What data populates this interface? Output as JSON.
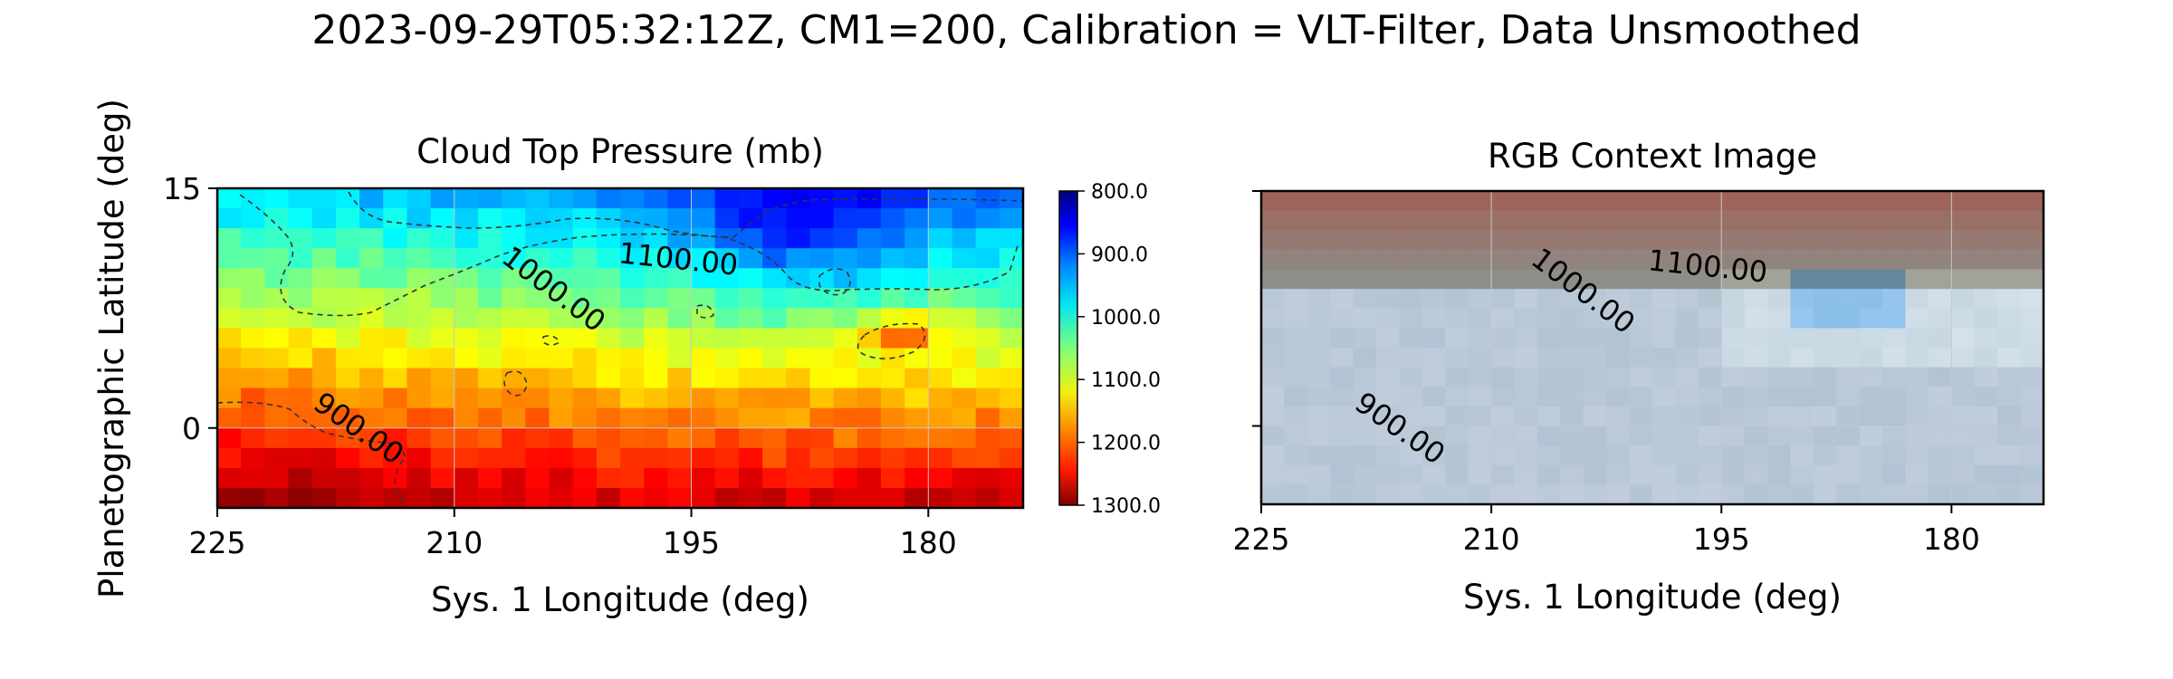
{
  "figure": {
    "suptitle": "2023-09-29T05:32:12Z, CM1=200, Calibration = VLT-Filter, Data Unsmoothed",
    "ylabel": "Planetographic Latitude (deg)"
  },
  "chart_data": [
    {
      "type": "heatmap",
      "title": "Cloud Top Pressure (mb)",
      "xlabel": "Sys. 1 Longitude (deg)",
      "ylabel": "Planetographic Latitude (deg)",
      "xlim": [
        225,
        174
      ],
      "ylim": [
        -5,
        15
      ],
      "xticks": [
        225,
        210,
        195,
        180
      ],
      "yticks": [
        0,
        15
      ],
      "grid": true,
      "colormap": "jet",
      "colorbar": {
        "vmin": 800.0,
        "vmax": 1300.0,
        "ticks": [
          "800.0",
          "900.0",
          "1000.0",
          "1100.0",
          "1200.0",
          "1300.0"
        ]
      },
      "contours": [
        {
          "level": 900,
          "label": "900.00"
        },
        {
          "level": 1000,
          "label": "1000.00"
        },
        {
          "level": 1100,
          "label": "1100.00"
        }
      ]
    },
    {
      "type": "heatmap",
      "title": "RGB Context Image",
      "xlabel": "Sys. 1 Longitude (deg)",
      "xlim": [
        225,
        174
      ],
      "ylim": [
        -5,
        15
      ],
      "xticks": [
        225,
        210,
        195,
        180
      ],
      "yticks": [
        0,
        15
      ],
      "grid": true,
      "contours": [
        {
          "level": 900,
          "label": "900.00"
        },
        {
          "level": 1000,
          "label": "1000.00"
        },
        {
          "level": 1100,
          "label": "1100.00"
        }
      ]
    }
  ]
}
